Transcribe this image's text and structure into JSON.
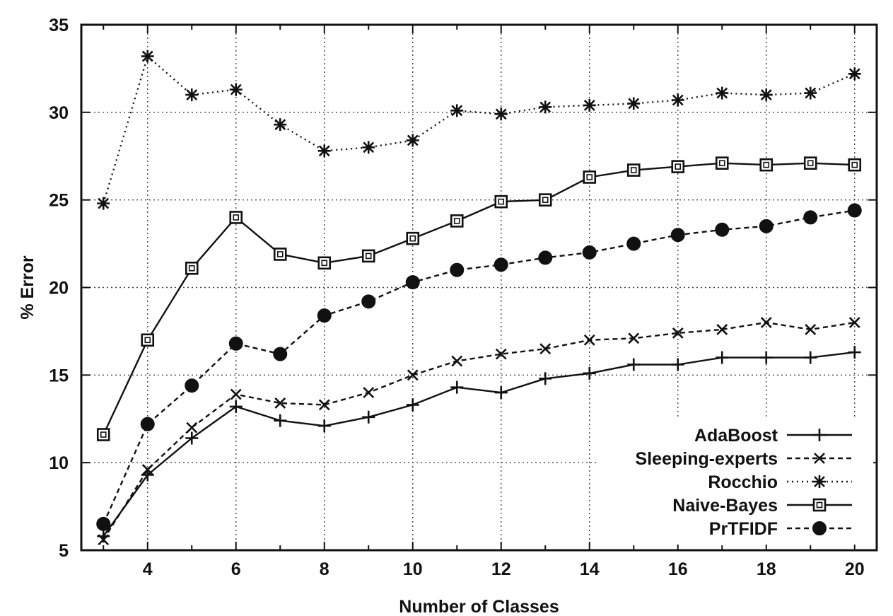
{
  "chart_data": {
    "type": "line",
    "title": "",
    "xlabel": "Number of Classes",
    "ylabel": "% Error",
    "xlim": [
      2.5,
      20.5
    ],
    "ylim": [
      5,
      35
    ],
    "xticks": [
      4,
      6,
      8,
      10,
      12,
      14,
      16,
      18,
      20
    ],
    "yticks": [
      5,
      10,
      15,
      20,
      25,
      30,
      35
    ],
    "grid": true,
    "legend_position": "bottom-right",
    "x": [
      3,
      4,
      5,
      6,
      7,
      8,
      9,
      10,
      11,
      12,
      13,
      14,
      15,
      16,
      17,
      18,
      19,
      20
    ],
    "series": [
      {
        "name": "AdaBoost",
        "marker": "plus",
        "line": "solid",
        "values": [
          5.8,
          9.3,
          11.4,
          13.2,
          12.4,
          12.1,
          12.6,
          13.3,
          14.3,
          14.0,
          14.8,
          15.1,
          15.6,
          15.6,
          16.0,
          16.0,
          16.0,
          16.3
        ]
      },
      {
        "name": "Sleeping-experts",
        "marker": "x",
        "line": "dashed",
        "values": [
          5.6,
          9.6,
          12.0,
          13.9,
          13.4,
          13.3,
          14.0,
          15.0,
          15.8,
          16.2,
          16.5,
          17.0,
          17.1,
          17.4,
          17.6,
          18.0,
          17.6,
          18.0
        ]
      },
      {
        "name": "Rocchio",
        "marker": "star",
        "line": "dotted",
        "values": [
          24.8,
          33.2,
          31.0,
          31.3,
          29.3,
          27.8,
          28.0,
          28.4,
          30.1,
          29.9,
          30.3,
          30.4,
          30.5,
          30.7,
          31.1,
          31.0,
          31.1,
          32.2
        ]
      },
      {
        "name": "Naive-Bayes",
        "marker": "open-square",
        "line": "solid",
        "values": [
          11.6,
          17.0,
          21.1,
          24.0,
          21.9,
          21.4,
          21.8,
          22.8,
          23.8,
          24.9,
          25.0,
          26.3,
          26.7,
          26.9,
          27.1,
          27.0,
          27.1,
          27.0
        ]
      },
      {
        "name": "PrTFIDF",
        "marker": "filled-circle",
        "line": "dashed",
        "values": [
          6.5,
          12.2,
          14.4,
          16.8,
          16.2,
          18.4,
          19.2,
          20.3,
          21.0,
          21.3,
          21.7,
          22.0,
          22.5,
          23.0,
          23.3,
          23.5,
          24.0,
          24.4
        ]
      }
    ]
  }
}
